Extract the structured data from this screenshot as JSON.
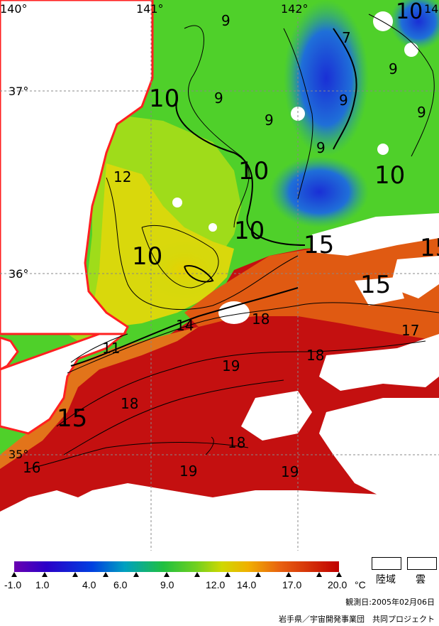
{
  "map": {
    "lon_labels": [
      "140°",
      "141°",
      "142°",
      "14"
    ],
    "lat_labels": [
      "37°",
      "36°",
      "35°"
    ],
    "contour_labels": [
      "9",
      "10",
      "7",
      "9",
      "9",
      "9",
      "9",
      "9",
      "9",
      "10",
      "12",
      "10",
      "10",
      "10",
      "15",
      "15",
      "15",
      "10",
      "14",
      "18",
      "17",
      "11",
      "18",
      "19",
      "15",
      "18",
      "18",
      "16",
      "19",
      "19"
    ]
  },
  "legend": {
    "ticks": [
      "-1.0",
      "1.0",
      "4.0",
      "6.0",
      "9.0",
      "12.0",
      "14.0",
      "17.0",
      "20.0"
    ],
    "unit": "°C",
    "land_label": "陸域",
    "cloud_label": "雲"
  },
  "footer": {
    "date_text": "観測日:2005年02月06日",
    "credit_text": "岩手県／宇宙開発事業団　共同プロジェクト"
  }
}
